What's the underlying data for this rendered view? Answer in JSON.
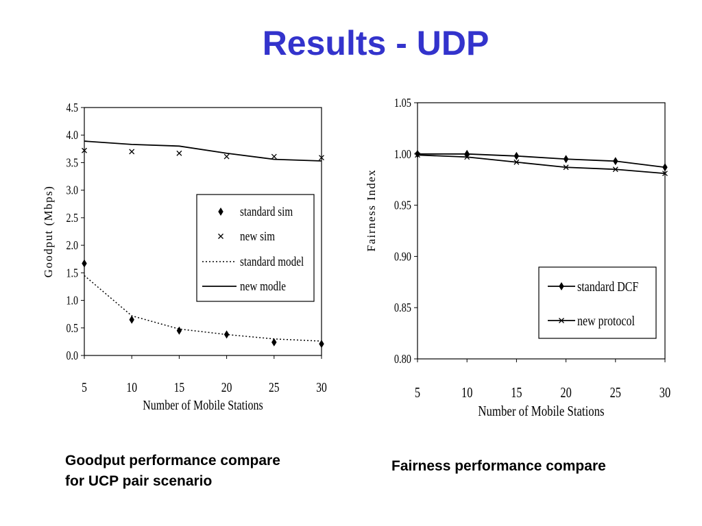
{
  "slide": {
    "title": "Results - UDP",
    "caption_left": [
      "Goodput performance compare",
      "for UCP pair scenario"
    ],
    "caption_right": "Fairness performance compare",
    "title_color": "#3333cc"
  },
  "chart_data": [
    {
      "type": "line",
      "title": "",
      "xlabel": "Number of Mobile Stations",
      "ylabel": "Goodput (Mbps)",
      "x": [
        5,
        10,
        15,
        20,
        25,
        30
      ],
      "xlim": [
        5,
        30
      ],
      "ylim": [
        0.0,
        4.5
      ],
      "yticks": [
        "0.0",
        "0.5",
        "1.0",
        "1.5",
        "2.0",
        "2.5",
        "3.0",
        "3.5",
        "4.0",
        "4.5"
      ],
      "yticks_values": [
        0,
        0.5,
        1.0,
        1.5,
        2.0,
        2.5,
        3.0,
        3.5,
        4.0,
        4.5
      ],
      "xticks": [
        "5",
        "10",
        "15",
        "20",
        "25",
        "30"
      ],
      "grid": false,
      "legend_position": "right-middle",
      "series": [
        {
          "name": "standard sim",
          "style": "diamond-marker",
          "values": [
            1.67,
            0.65,
            0.45,
            0.38,
            0.24,
            0.21
          ]
        },
        {
          "name": "new sim",
          "style": "x-marker",
          "values": [
            3.72,
            3.7,
            3.67,
            3.61,
            3.61,
            3.59
          ]
        },
        {
          "name": "standard model",
          "style": "dotted-line",
          "values": [
            1.45,
            0.72,
            0.48,
            0.38,
            0.3,
            0.26
          ]
        },
        {
          "name": "new modle",
          "style": "solid-line",
          "values": [
            3.89,
            3.83,
            3.8,
            3.67,
            3.56,
            3.53
          ]
        }
      ]
    },
    {
      "type": "line",
      "title": "",
      "xlabel": "Number of Mobile Stations",
      "ylabel": "Fairness Index",
      "x": [
        5,
        10,
        15,
        20,
        25,
        30
      ],
      "xlim": [
        5,
        30
      ],
      "ylim": [
        0.8,
        1.05
      ],
      "yticks": [
        "0.80",
        "0.85",
        "0.90",
        "0.95",
        "1.00",
        "1.05"
      ],
      "yticks_values": [
        0.8,
        0.85,
        0.9,
        0.95,
        1.0,
        1.05
      ],
      "xticks": [
        "5",
        "10",
        "15",
        "20",
        "25",
        "30"
      ],
      "grid": false,
      "legend_position": "bottom-right",
      "series": [
        {
          "name": "standard DCF",
          "style": "line-diamond",
          "values": [
            1.0,
            1.0,
            0.998,
            0.995,
            0.993,
            0.987
          ]
        },
        {
          "name": "new protocol",
          "style": "line-x",
          "values": [
            0.999,
            0.997,
            0.992,
            0.987,
            0.985,
            0.981
          ]
        }
      ]
    }
  ]
}
